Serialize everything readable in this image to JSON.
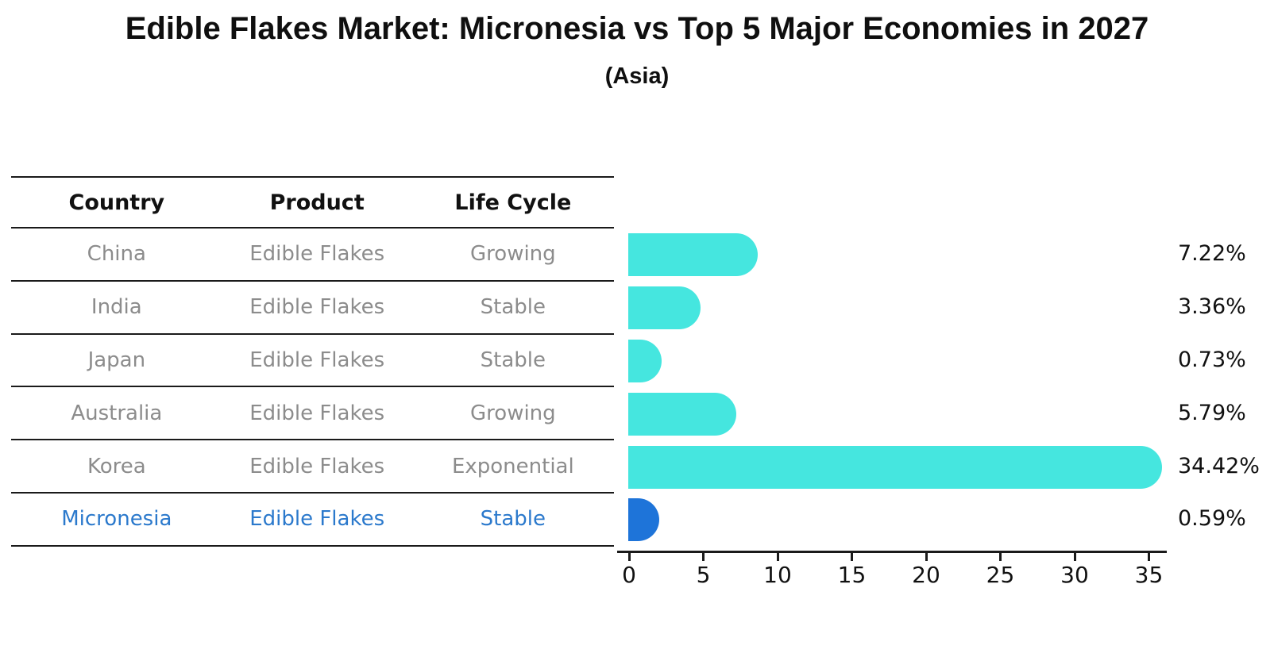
{
  "chart_data": {
    "type": "bar",
    "orientation": "horizontal",
    "title": "Edible Flakes Market: Micronesia vs Top 5 Major Economies in 2027",
    "subtitle": "(Asia)",
    "categories": [
      "China",
      "India",
      "Japan",
      "Australia",
      "Korea",
      "Micronesia"
    ],
    "values": [
      7.22,
      3.36,
      0.73,
      5.79,
      34.42,
      0.59
    ],
    "value_labels": [
      "7.22%",
      "3.36%",
      "0.73%",
      "5.79%",
      "34.42%",
      "0.59%"
    ],
    "x_ticks": [
      "0",
      "5",
      "10",
      "15",
      "20",
      "25",
      "30",
      "35"
    ],
    "x_tick_values": [
      0,
      5,
      10,
      15,
      20,
      25,
      30,
      35
    ],
    "xlim": [
      0,
      36.2
    ],
    "grid": false,
    "legend": "none",
    "bar_color": "#45E6DF",
    "highlight_bar_color": "#1E74D9",
    "highlight_index": 5
  },
  "table": {
    "headers": [
      "Country",
      "Product",
      "Life Cycle"
    ],
    "rows": [
      [
        "China",
        "Edible Flakes",
        "Growing"
      ],
      [
        "India",
        "Edible Flakes",
        "Stable"
      ],
      [
        "Japan",
        "Edible Flakes",
        "Stable"
      ],
      [
        "Australia",
        "Edible Flakes",
        "Growing"
      ],
      [
        "Korea",
        "Edible Flakes",
        "Exponential"
      ],
      [
        "Micronesia",
        "Edible Flakes",
        "Stable"
      ]
    ],
    "highlight_row_index": 5,
    "text_color": "#8c8c8c",
    "highlight_text_color": "#2b79cc",
    "header_color": "#111111",
    "line_color": "#1a1a1a"
  }
}
